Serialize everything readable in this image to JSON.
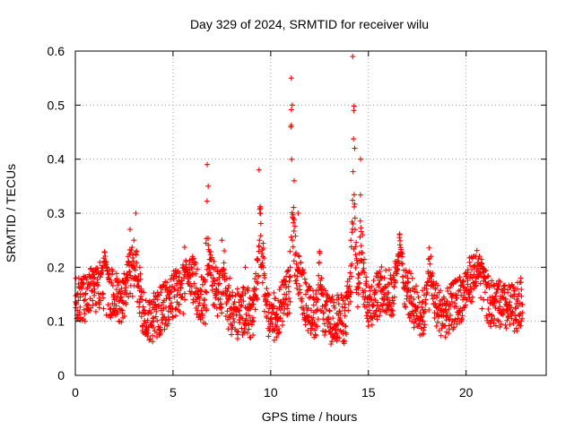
{
  "chart_data": {
    "type": "scatter",
    "title": "Day 329 of 2024, SRMTID for receiver wilu",
    "xlabel": "GPS time / hours",
    "ylabel": "SRMTID / TECUs",
    "xlim": [
      0,
      24.1
    ],
    "ylim": [
      0,
      0.6
    ],
    "x_ticks": [
      0,
      5,
      10,
      15,
      20
    ],
    "x_tick_labels": [
      "0",
      "5",
      "10",
      "15",
      "20"
    ],
    "y_ticks": [
      0,
      0.1,
      0.2,
      0.3,
      0.4,
      0.5,
      0.6
    ],
    "y_tick_labels": [
      "0",
      "0.1",
      "0.2",
      "0.3",
      "0.4",
      "0.5",
      "0.6"
    ],
    "grid": true,
    "marker": "plus",
    "color": "#ff0000",
    "x_range_hours": [
      0,
      22.9
    ],
    "sample_points": {
      "x": [
        0.1,
        0.5,
        0.9,
        1.3,
        1.7,
        2.0,
        2.4,
        2.7,
        2.8,
        3.0,
        3.1,
        3.3,
        3.6,
        4.0,
        4.4,
        4.8,
        5.2,
        5.6,
        6.0,
        6.3,
        6.7,
        6.75,
        6.8,
        7.2,
        7.5,
        7.9,
        8.3,
        8.7,
        9.1,
        9.4,
        9.45,
        9.6,
        9.9,
        10.3,
        10.7,
        11.0,
        11.05,
        11.1,
        11.2,
        11.4,
        11.8,
        12.2,
        12.6,
        13.0,
        13.4,
        13.8,
        14.1,
        14.2,
        14.25,
        14.3,
        14.5,
        14.6,
        14.7,
        15.0,
        15.4,
        15.8,
        16.2,
        16.6,
        17.0,
        17.4,
        17.8,
        18.2,
        18.6,
        19.0,
        19.4,
        19.8,
        20.2,
        20.5,
        20.9,
        21.3,
        21.7,
        22.1,
        22.5,
        22.8
      ],
      "y": [
        0.12,
        0.1,
        0.13,
        0.15,
        0.11,
        0.14,
        0.12,
        0.22,
        0.27,
        0.25,
        0.3,
        0.2,
        0.08,
        0.1,
        0.12,
        0.15,
        0.17,
        0.14,
        0.22,
        0.15,
        0.12,
        0.39,
        0.35,
        0.2,
        0.25,
        0.18,
        0.16,
        0.2,
        0.14,
        0.38,
        0.3,
        0.22,
        0.1,
        0.09,
        0.15,
        0.2,
        0.55,
        0.5,
        0.36,
        0.3,
        0.15,
        0.13,
        0.18,
        0.12,
        0.14,
        0.11,
        0.25,
        0.59,
        0.49,
        0.42,
        0.17,
        0.4,
        0.26,
        0.1,
        0.12,
        0.15,
        0.12,
        0.26,
        0.18,
        0.12,
        0.1,
        0.22,
        0.11,
        0.08,
        0.1,
        0.12,
        0.18,
        0.22,
        0.14,
        0.1,
        0.12,
        0.13,
        0.16,
        0.18
      ]
    }
  }
}
